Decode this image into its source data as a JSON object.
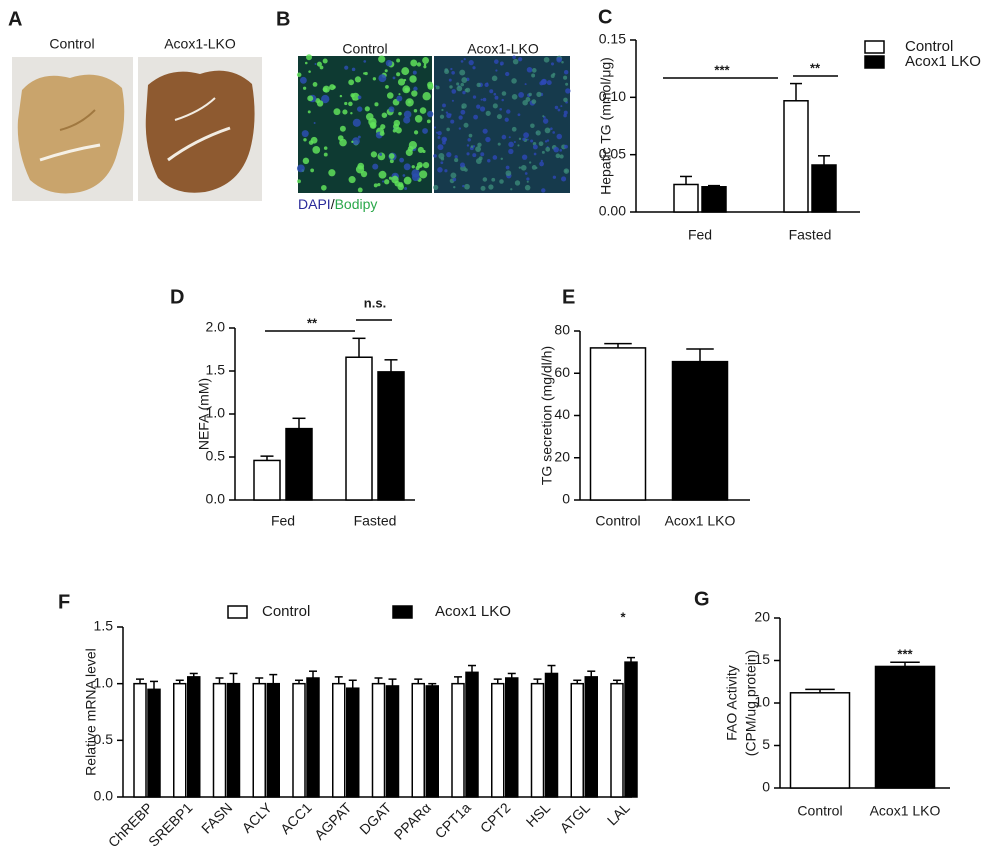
{
  "panel_labels": [
    "A",
    "B",
    "C",
    "D",
    "E",
    "F",
    "G"
  ],
  "image_panels": [
    {
      "labels": [
        "Control",
        "Acox1-LKO"
      ]
    },
    {
      "labels": [
        "Control",
        "Acox1-LKO"
      ],
      "stain": [
        "DAPI",
        "/",
        "Bodipy"
      ]
    }
  ],
  "chart_data": [
    {
      "type": "bar",
      "ylabel": "Hepatic TG (mmol/μg)",
      "categories": [
        "Fed",
        "Fasted"
      ],
      "series": [
        {
          "name": "Control",
          "color": "#ffffff",
          "values": [
            0.024,
            0.097
          ],
          "errors": [
            0.007,
            0.015
          ]
        },
        {
          "name": "Acox1 LKO",
          "color": "#000000",
          "values": [
            0.022,
            0.041
          ],
          "errors": [
            0.001,
            0.008
          ]
        }
      ],
      "ylim": [
        0,
        0.15
      ],
      "yticks": [
        {
          "value": 0,
          "label": "0.00"
        },
        {
          "value": 0.05,
          "label": "0.05"
        },
        {
          "value": 0.1,
          "label": "0.10"
        },
        {
          "value": 0.15,
          "label": "0.15"
        }
      ],
      "annotations": [
        "***",
        "**"
      ],
      "legend": "upper right"
    },
    {
      "type": "bar",
      "ylabel": "NEFA (mM)",
      "categories": [
        "Fed",
        "Fasted"
      ],
      "series": [
        {
          "name": "Control",
          "color": "#ffffff",
          "values": [
            0.46,
            1.66
          ],
          "errors": [
            0.05,
            0.22
          ]
        },
        {
          "name": "Acox1 LKO",
          "color": "#000000",
          "values": [
            0.83,
            1.49
          ],
          "errors": [
            0.12,
            0.14
          ]
        }
      ],
      "ylim": [
        0,
        2.0
      ],
      "yticks": [
        {
          "value": 0,
          "label": "0.0"
        },
        {
          "value": 0.5,
          "label": "0.5"
        },
        {
          "value": 1.0,
          "label": "1.0"
        },
        {
          "value": 1.5,
          "label": "1.5"
        },
        {
          "value": 2.0,
          "label": "2.0"
        }
      ],
      "annotations": [
        "**",
        "n.s."
      ]
    },
    {
      "type": "bar",
      "ylabel": "TG secretion (mg/dl/h)",
      "categories": [
        "Control",
        "Acox1 LKO"
      ],
      "values": [
        72,
        65.5
      ],
      "errors": [
        2,
        6
      ],
      "colors": [
        "#ffffff",
        "#000000"
      ],
      "ylim": [
        0,
        80
      ],
      "yticks": [
        0,
        20,
        40,
        60,
        80
      ]
    },
    {
      "type": "bar",
      "ylabel": "Relative mRNA level",
      "categories": [
        "ChREBP",
        "SREBP1",
        "FASN",
        "ACLY",
        "ACC1",
        "AGPAT",
        "DGAT",
        "PPARα",
        "CPT1a",
        "CPT2",
        "HSL",
        "ATGL",
        "LAL"
      ],
      "series": [
        {
          "name": "Control",
          "color": "#ffffff",
          "values": [
            1.0,
            1.0,
            1.0,
            1.0,
            1.0,
            1.0,
            1.0,
            1.0,
            1.0,
            1.0,
            1.0,
            1.0,
            1.0
          ],
          "errors": [
            0.04,
            0.03,
            0.05,
            0.05,
            0.03,
            0.06,
            0.05,
            0.04,
            0.06,
            0.04,
            0.04,
            0.03,
            0.03
          ]
        },
        {
          "name": "Acox1 LKO",
          "color": "#000000",
          "values": [
            0.95,
            1.06,
            1.0,
            1.0,
            1.05,
            0.96,
            0.98,
            0.98,
            1.1,
            1.05,
            1.09,
            1.06,
            1.19
          ],
          "errors": [
            0.07,
            0.03,
            0.09,
            0.08,
            0.06,
            0.07,
            0.06,
            0.02,
            0.06,
            0.04,
            0.07,
            0.05,
            0.04
          ]
        }
      ],
      "ylim": [
        0,
        1.5
      ],
      "yticks": [
        {
          "value": 0,
          "label": "0.0"
        },
        {
          "value": 0.5,
          "label": "0.5"
        },
        {
          "value": 1.0,
          "label": "1.0"
        },
        {
          "value": 1.5,
          "label": "1.5"
        }
      ],
      "annotations": [
        "*"
      ],
      "legend": "top"
    },
    {
      "type": "bar",
      "ylabel": [
        "FAO Activity",
        "(CPM/ug protein)"
      ],
      "categories": [
        "Control",
        "Acox1 LKO"
      ],
      "values": [
        11.2,
        14.3
      ],
      "errors": [
        0.4,
        0.5
      ],
      "colors": [
        "#ffffff",
        "#000000"
      ],
      "ylim": [
        0,
        20
      ],
      "yticks": [
        0,
        5,
        10,
        15,
        20
      ],
      "annotations": [
        "***"
      ]
    }
  ]
}
